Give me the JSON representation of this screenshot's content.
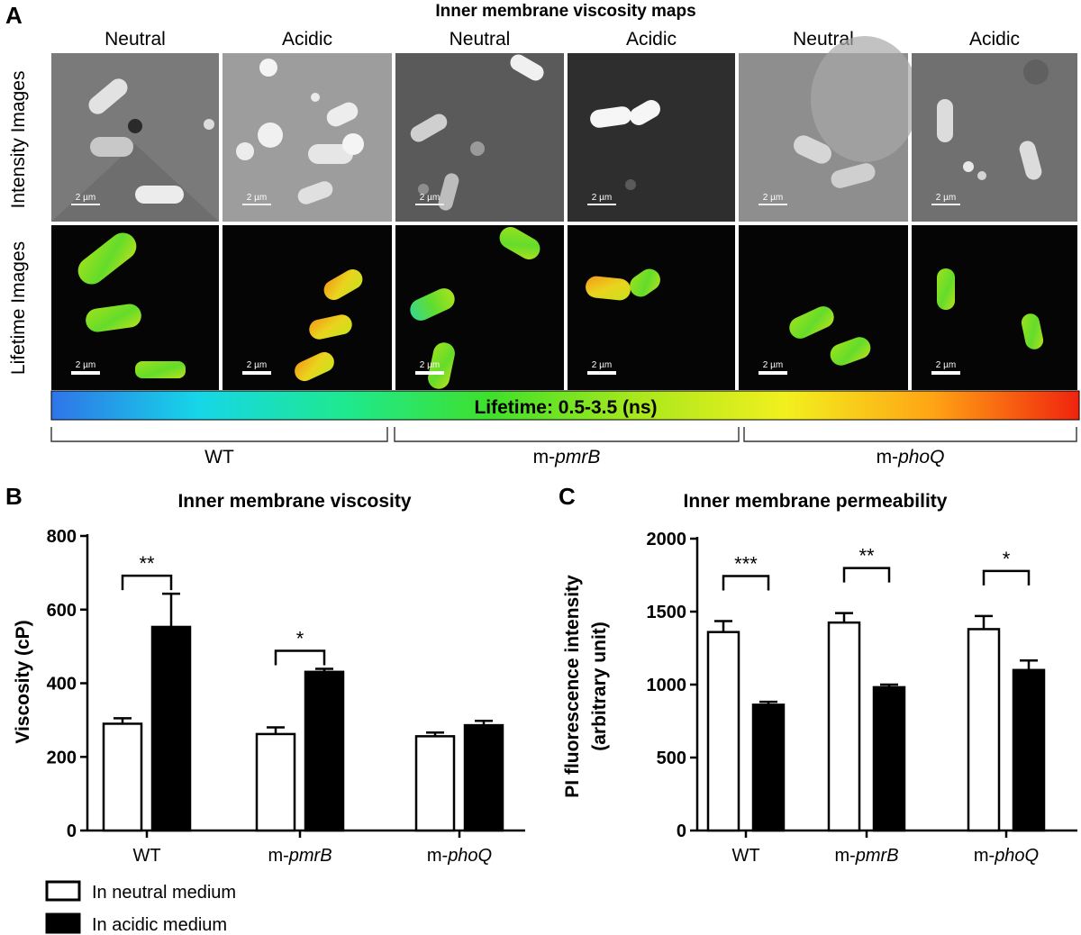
{
  "panel_a": {
    "letter": "A",
    "title": "Inner membrane viscosity maps",
    "columns": [
      "Neutral",
      "Acidic",
      "Neutral",
      "Acidic",
      "Neutral",
      "Acidic"
    ],
    "row_labels": [
      "Intensity Images",
      "Lifetime Images"
    ],
    "scalebar_label": "2 µm",
    "colorbar_label": "Lifetime: 0.5-3.5 (ns)",
    "colorbar_stops": [
      "#2f74e8",
      "#16d6e8",
      "#1ee98f",
      "#3fe02a",
      "#a9e81c",
      "#f2f01e",
      "#ffa414",
      "#f0230e"
    ],
    "groups": [
      {
        "prefix": "WT",
        "italic": ""
      },
      {
        "prefix": "m-",
        "italic": "pmrB"
      },
      {
        "prefix": "m-",
        "italic": "phoQ"
      }
    ]
  },
  "chart_data": [
    {
      "type": "bar",
      "panel": "B",
      "title": "Inner membrane viscosity",
      "ylabel": "Viscosity (cP)",
      "ylim": [
        0,
        800
      ],
      "yticks": [
        0,
        200,
        400,
        600,
        800
      ],
      "categories": [
        "WT",
        "m-pmrB",
        "m-phoQ"
      ],
      "series": [
        {
          "name": "In neutral medium",
          "values": [
            290,
            262,
            256
          ],
          "errors": [
            15,
            18,
            10
          ],
          "fill": "#ffffff"
        },
        {
          "name": "In acidic medium",
          "values": [
            553,
            431,
            286
          ],
          "errors": [
            90,
            8,
            12
          ],
          "fill": "#000000"
        }
      ],
      "significance": [
        {
          "category": 0,
          "label": "**"
        },
        {
          "category": 1,
          "label": "*"
        }
      ]
    },
    {
      "type": "bar",
      "panel": "C",
      "title": "Inner membrane permeability",
      "ylabel": "PI fluorescence intensity",
      "ylabel2": "(arbitrary unit)",
      "ylim": [
        0,
        2000
      ],
      "yticks": [
        0,
        500,
        1000,
        1500,
        2000
      ],
      "categories": [
        "WT",
        "m-pmrB",
        "m-phoQ"
      ],
      "series": [
        {
          "name": "In neutral medium",
          "values": [
            1360,
            1425,
            1380
          ],
          "errors": [
            75,
            65,
            90
          ],
          "fill": "#ffffff"
        },
        {
          "name": "In acidic medium",
          "values": [
            862,
            982,
            1100
          ],
          "errors": [
            20,
            18,
            65
          ],
          "fill": "#000000"
        }
      ],
      "significance": [
        {
          "category": 0,
          "label": "***"
        },
        {
          "category": 1,
          "label": "**"
        },
        {
          "category": 2,
          "label": "*"
        }
      ]
    }
  ],
  "legend": {
    "items": [
      {
        "label": "In neutral medium",
        "fill": "#ffffff"
      },
      {
        "label": "In acidic medium",
        "fill": "#000000"
      }
    ]
  }
}
